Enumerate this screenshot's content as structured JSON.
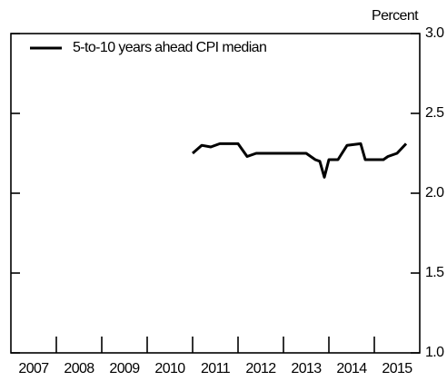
{
  "chart_data": {
    "type": "line",
    "series": [
      {
        "name": "5-to-10 years ahead CPI median",
        "color": "#000000",
        "x": [
          2011.0,
          2011.2,
          2011.4,
          2011.6,
          2012.0,
          2012.2,
          2012.4,
          2013.5,
          2013.7,
          2013.8,
          2013.9,
          2014.0,
          2014.2,
          2014.4,
          2014.7,
          2014.8,
          2015.2,
          2015.3,
          2015.5,
          2015.7
        ],
        "values": [
          2.25,
          2.3,
          2.29,
          2.31,
          2.31,
          2.23,
          2.25,
          2.25,
          2.21,
          2.2,
          2.1,
          2.21,
          2.21,
          2.3,
          2.31,
          2.21,
          2.21,
          2.23,
          2.25,
          2.31
        ]
      }
    ],
    "xlim": [
      2007,
      2016
    ],
    "xticks": [
      2008,
      2009,
      2010,
      2011,
      2012,
      2013,
      2014,
      2015
    ],
    "xlabels": [
      2007,
      2008,
      2009,
      2010,
      2011,
      2012,
      2013,
      2014,
      2015
    ],
    "ylim": [
      1.0,
      3.0
    ],
    "yticks": [
      {
        "value": 1.0,
        "label": "1.0"
      },
      {
        "value": 1.5,
        "label": "1.5"
      },
      {
        "value": 2.0,
        "label": "2.0"
      },
      {
        "value": 2.5,
        "label": "2.5"
      },
      {
        "value": 3.0,
        "label": "3.0"
      }
    ],
    "y_axis_label": "Percent",
    "legend": "upper left"
  }
}
